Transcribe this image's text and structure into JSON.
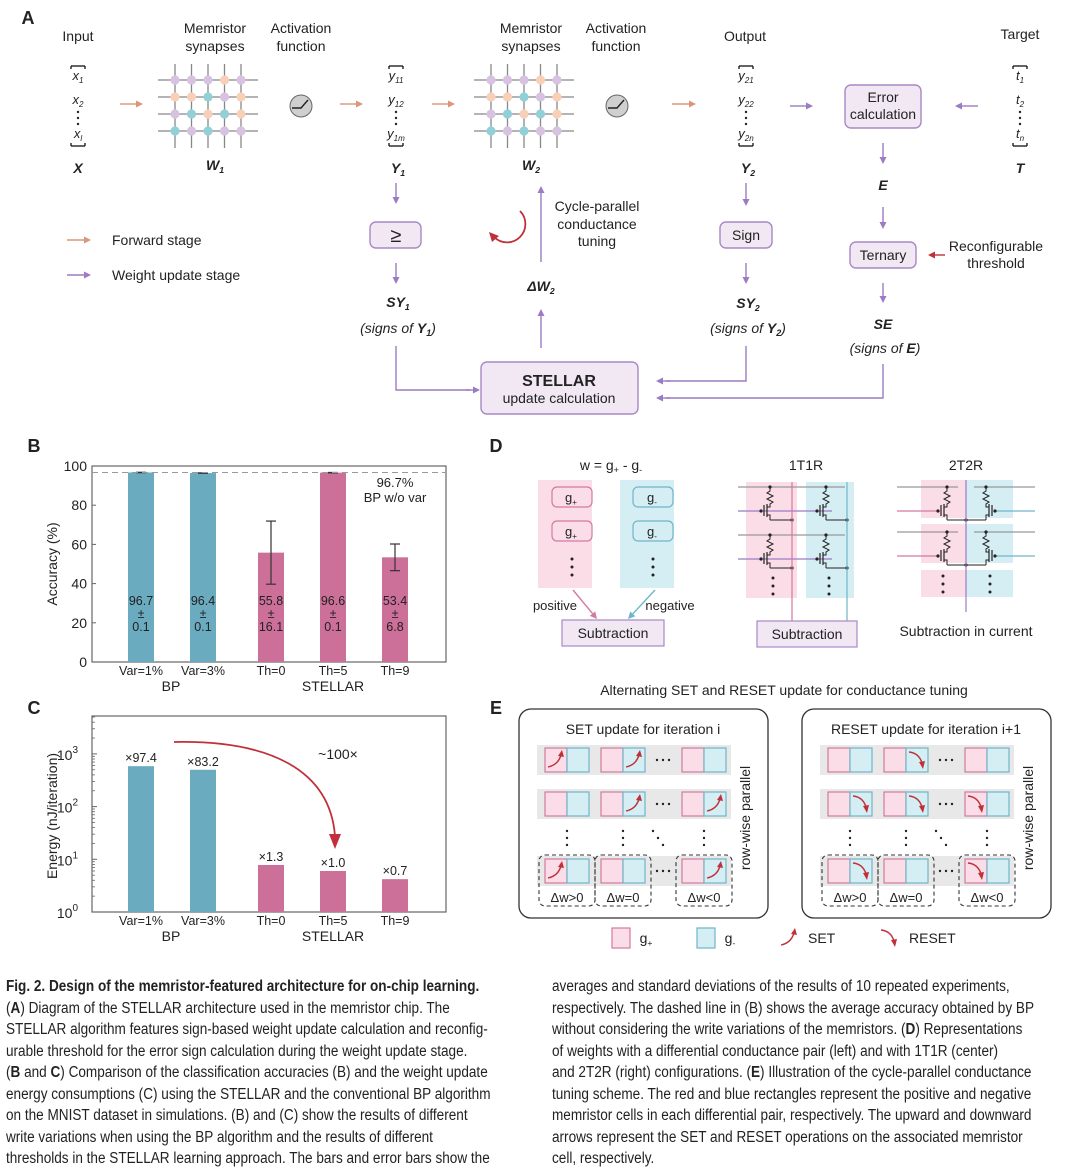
{
  "panel_labels": {
    "a": "A",
    "b": "B",
    "c": "C",
    "d": "D",
    "e": "E"
  },
  "panel_a": {
    "input_label": "Input",
    "synapses_label": [
      "Memristor",
      "synapses"
    ],
    "activation_label": [
      "Activation",
      "function"
    ],
    "output_label": "Output",
    "target_label": "Target",
    "x_vec": [
      {
        "m": "x",
        "s": "1"
      },
      {
        "m": "x",
        "s": "2"
      },
      {
        "m": "x",
        "s": "l"
      }
    ],
    "x_name": "X",
    "w1": {
      "m": "W",
      "s": "1"
    },
    "y1_vec": [
      {
        "m": "y",
        "s": "11"
      },
      {
        "m": "y",
        "s": "12"
      },
      {
        "m": "y",
        "s": "1m"
      }
    ],
    "y1_name": {
      "m": "Y",
      "s": "1"
    },
    "w2": {
      "m": "W",
      "s": "2"
    },
    "y2_vec": [
      {
        "m": "y",
        "s": "21"
      },
      {
        "m": "y",
        "s": "22"
      },
      {
        "m": "y",
        "s": "2n"
      }
    ],
    "y2_name": {
      "m": "Y",
      "s": "2"
    },
    "t_vec": [
      {
        "m": "t",
        "s": "1"
      },
      {
        "m": "t",
        "s": "2"
      },
      {
        "m": "t",
        "s": "n"
      }
    ],
    "t_name": "T",
    "error_box": [
      "Error",
      "calculation"
    ],
    "e_name": "E",
    "ternary_box": "Ternary",
    "threshold_label": [
      "Reconfigurable",
      "threshold"
    ],
    "se_name": "SE",
    "se_caption": {
      "pre": "(signs of ",
      "b": "E",
      "post": ")"
    },
    "compare_box": "≥",
    "sy1_name": {
      "m": "SY",
      "s": "1"
    },
    "sy1_caption": {
      "pre": "(signs of ",
      "b": "Y",
      "s": "1",
      "post": ")"
    },
    "sign_box": "Sign",
    "sy2_name": {
      "m": "SY",
      "s": "2"
    },
    "sy2_caption": {
      "pre": "(signs of ",
      "b": "Y",
      "s": "2",
      "post": ")"
    },
    "stellar_box": {
      "title": "STELLAR",
      "subtitle": "update calculation"
    },
    "delta_w2": {
      "m": "ΔW",
      "s": "2"
    },
    "tuning_label": [
      "Cycle-parallel",
      "conductance",
      "tuning"
    ],
    "legend": [
      {
        "label": "Forward stage",
        "color": "#d9967a"
      },
      {
        "label": "Weight update stage",
        "color": "#9b7bc4"
      }
    ],
    "colors": {
      "forward": "#d9967a",
      "update": "#9b7bc4",
      "box_fill": "#f1e8f4",
      "box_stroke": "#a888c4",
      "threshold": "#c0303a",
      "stellar": "#c0303a",
      "dot_purple": "#d8c2e2",
      "dot_orange": "#f8d0b8",
      "dot_teal": "#92d0d8"
    }
  },
  "chart_data": [
    {
      "type": "bar",
      "panel": "B",
      "categories": [
        "Var=1%",
        "Var=3%",
        "Th=0",
        "Th=5",
        "Th=9"
      ],
      "groups": [
        {
          "label": "BP",
          "members": [
            "Var=1%",
            "Var=3%"
          ]
        },
        {
          "label": "STELLAR",
          "members": [
            "Th=0",
            "Th=5",
            "Th=9"
          ]
        }
      ],
      "values": [
        96.7,
        96.4,
        55.8,
        96.6,
        53.4
      ],
      "errors": [
        0.1,
        0.1,
        16.1,
        0.1,
        6.8
      ],
      "value_labels": [
        [
          "96.7",
          "±",
          "0.1"
        ],
        [
          "96.4",
          "±",
          "0.1"
        ],
        [
          "55.8",
          "±",
          "16.1"
        ],
        [
          "96.6",
          "±",
          "0.1"
        ],
        [
          "53.4",
          "±",
          "6.8"
        ]
      ],
      "bar_colors": [
        "#6aabc0",
        "#6aabc0",
        "#cc7099",
        "#cc7099",
        "#cc7099"
      ],
      "ylabel": "Accuracy (%)",
      "ylim": [
        0,
        100
      ],
      "yticks": [
        "0",
        "20",
        "40",
        "60",
        "80",
        "100"
      ],
      "reference_line": {
        "value": 96.7,
        "style": "dashed",
        "label": [
          "96.7%",
          "BP w/o var"
        ]
      },
      "grid": false
    },
    {
      "type": "bar",
      "panel": "C",
      "categories": [
        "Var=1%",
        "Var=3%",
        "Th=0",
        "Th=5",
        "Th=9"
      ],
      "groups": [
        {
          "label": "BP",
          "members": [
            "Var=1%",
            "Var=3%"
          ]
        },
        {
          "label": "STELLAR",
          "members": [
            "Th=0",
            "Th=5",
            "Th=9"
          ]
        }
      ],
      "values": [
        585,
        500,
        7.8,
        6.0,
        4.2
      ],
      "value_labels": [
        "×97.4",
        "×83.2",
        "×1.3",
        "×1.0",
        "×0.7"
      ],
      "bar_colors": [
        "#6aabc0",
        "#6aabc0",
        "#cc7099",
        "#cc7099",
        "#cc7099"
      ],
      "ylabel": "Energy (nJ/iteration)",
      "yscale": "log",
      "ylim": [
        1,
        5000
      ],
      "yticks": [
        {
          "base": "10",
          "exp": "0"
        },
        {
          "base": "10",
          "exp": "1"
        },
        {
          "base": "10",
          "exp": "2"
        },
        {
          "base": "10",
          "exp": "3"
        }
      ],
      "annotation": {
        "label": "~100×",
        "color": "#c0303a"
      },
      "grid": false
    }
  ],
  "panel_d": {
    "formula": {
      "a": "w = g",
      "a_sub": "+",
      "b": " - g",
      "b_sub": "-"
    },
    "pair_cells": {
      "pos": {
        "m": "g",
        "s": "+"
      },
      "neg": {
        "m": "g",
        "s": "-"
      }
    },
    "positive_label": "positive",
    "negative_label": "negative",
    "subtraction_label": "Subtraction",
    "t1r_title": "1T1R",
    "t2r_title": "2T2R",
    "t2r_caption": "Subtraction in current",
    "colors": {
      "pink": "#fbdde8",
      "blue": "#d5eef4",
      "pink_line": "#d27aa0",
      "blue_line": "#6fb5c8",
      "word_line": "#9b7bc4"
    }
  },
  "panel_e": {
    "title": "Alternating SET and RESET update for conductance tuning",
    "set_box": {
      "title": "SET update for iteration i",
      "side_label": "row-wise parallel"
    },
    "reset_box": {
      "title": "RESET update for iteration i+1",
      "side_label": "row-wise parallel"
    },
    "delta_labels": [
      "Δw>0",
      "Δw=0",
      "Δw<0"
    ],
    "legend": {
      "pos": {
        "m": "g",
        "s": "+"
      },
      "neg": {
        "m": "g",
        "s": "-"
      },
      "set": "SET",
      "reset": "RESET"
    },
    "colors": {
      "arrow": "#c0303a"
    }
  },
  "caption": {
    "left_lines": [
      [
        {
          "t": "Fig. 2. Design of the memristor-featured architecture for on-chip learning.",
          "b": true
        }
      ],
      [
        {
          "t": "("
        },
        {
          "t": "A",
          "b": true
        },
        {
          "t": ") Diagram of the STELLAR architecture used in the memristor chip. The"
        }
      ],
      [
        {
          "t": "STELLAR algorithm features sign-based weight update calculation and reconfig-"
        }
      ],
      [
        {
          "t": "urable threshold for the error sign calculation during the weight update stage."
        }
      ],
      [
        {
          "t": "("
        },
        {
          "t": "B",
          "b": true
        },
        {
          "t": " and "
        },
        {
          "t": "C",
          "b": true
        },
        {
          "t": ") Comparison of the classification accuracies (B) and the weight update"
        }
      ],
      [
        {
          "t": "energy consumptions (C) using the STELLAR and the conventional BP algorithm"
        }
      ],
      [
        {
          "t": "on the MNIST dataset in simulations. (B) and (C) show the results of different"
        }
      ],
      [
        {
          "t": "write variations when using the BP algorithm and the results of different"
        }
      ],
      [
        {
          "t": "thresholds in the STELLAR learning approach. The bars and error bars show the"
        }
      ]
    ],
    "right_lines": [
      [
        {
          "t": "averages and standard deviations of the results of 10 repeated experiments,"
        }
      ],
      [
        {
          "t": "respectively. The dashed line in (B) shows the average accuracy obtained by BP"
        }
      ],
      [
        {
          "t": "without considering the write variations of the memristors. ("
        },
        {
          "t": "D",
          "b": true
        },
        {
          "t": ") Representations"
        }
      ],
      [
        {
          "t": "of weights with a differential conductance pair (left) and with 1T1R (center)"
        }
      ],
      [
        {
          "t": "and 2T2R (right) configurations. ("
        },
        {
          "t": "E",
          "b": true
        },
        {
          "t": ") Illustration of the cycle-parallel conductance"
        }
      ],
      [
        {
          "t": "tuning scheme. The red and blue rectangles represent the positive and negative"
        }
      ],
      [
        {
          "t": "memristor cells in each differential pair, respectively. The upward and downward"
        }
      ],
      [
        {
          "t": "arrows represent the SET and RESET operations on the associated memristor"
        }
      ],
      [
        {
          "t": "cell, respectively."
        }
      ]
    ]
  }
}
